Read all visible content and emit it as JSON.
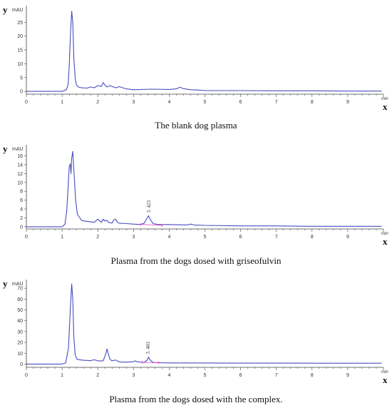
{
  "chart_data": [
    {
      "type": "line",
      "caption": "The blank dog plasma",
      "xlabel": "x",
      "ylabel": "y",
      "y_unit": "mAU",
      "x_unit": "min",
      "xlim": [
        0,
        10
      ],
      "ylim": [
        -1,
        31
      ],
      "x_ticks": [
        0,
        1,
        2,
        3,
        4,
        5,
        6,
        7,
        8,
        9
      ],
      "y_ticks": [
        0,
        5,
        10,
        15,
        20,
        25
      ],
      "grid": false,
      "line_color": "#4b4bbf",
      "series": [
        {
          "x": [
            0,
            1.0,
            1.12,
            1.17,
            1.2,
            1.24,
            1.27,
            1.3,
            1.33,
            1.37,
            1.4,
            1.45,
            1.55,
            1.7,
            1.8,
            1.9,
            2.0,
            2.1,
            2.15,
            2.2,
            2.25,
            2.35,
            2.5,
            2.6,
            2.8,
            3.0,
            3.5,
            4.0,
            4.2,
            4.3,
            4.4,
            4.6,
            4.8,
            5.0,
            6.0,
            7.0,
            8.0,
            9.0,
            9.95
          ],
          "y": [
            0,
            0,
            0.6,
            2.5,
            9,
            22,
            29,
            25,
            12,
            4.5,
            2.5,
            1.6,
            1.3,
            1.2,
            1.6,
            1.3,
            2.1,
            1.8,
            3.2,
            2.3,
            1.6,
            2.1,
            1.3,
            1.7,
            0.9,
            0.6,
            0.8,
            0.7,
            0.9,
            1.5,
            1.0,
            0.6,
            0.5,
            0.3,
            0.3,
            0.2,
            0.2,
            0.1,
            0.1
          ]
        }
      ],
      "peak_labels": []
    },
    {
      "type": "line",
      "caption": "Plasma from the dogs dosed with griseofulvin",
      "xlabel": "x",
      "ylabel": "y",
      "y_unit": "mAU",
      "x_unit": "min",
      "xlim": [
        0,
        10
      ],
      "ylim": [
        -0.5,
        18.5
      ],
      "x_ticks": [
        0,
        1,
        2,
        3,
        4,
        5,
        6,
        7,
        8,
        9
      ],
      "y_ticks": [
        0,
        2,
        4,
        6,
        8,
        10,
        12,
        14,
        16
      ],
      "grid": false,
      "line_color": "#4b4bbf",
      "baseline_color": "#e040c0",
      "series": [
        {
          "x": [
            0,
            1.0,
            1.08,
            1.13,
            1.17,
            1.2,
            1.23,
            1.25,
            1.27,
            1.3,
            1.33,
            1.38,
            1.43,
            1.48,
            1.55,
            1.7,
            1.8,
            1.9,
            2.0,
            2.1,
            2.15,
            2.2,
            2.25,
            2.3,
            2.4,
            2.45,
            2.5,
            2.55,
            2.6,
            2.8,
            3.0,
            3.2,
            3.3,
            3.35,
            3.42,
            3.48,
            3.55,
            3.7,
            4.0,
            4.5,
            4.6,
            4.7,
            5.0,
            6.0,
            7.0,
            8.0,
            9.0,
            9.95
          ],
          "y": [
            0,
            0,
            0.6,
            3.5,
            9,
            13.5,
            14.2,
            12,
            15.5,
            17,
            13,
            6,
            2.8,
            2.2,
            1.4,
            1.2,
            1.1,
            1.0,
            1.7,
            1.0,
            1.7,
            1.3,
            1.5,
            1.0,
            0.8,
            1.6,
            1.7,
            1.0,
            0.8,
            0.7,
            0.6,
            0.5,
            0.8,
            1.5,
            2.5,
            1.5,
            0.7,
            0.5,
            0.5,
            0.4,
            0.6,
            0.4,
            0.3,
            0.2,
            0.2,
            0.1,
            0.1,
            0.1
          ]
        }
      ],
      "peak_labels": [
        {
          "x": 3.423,
          "text": "3. 423"
        }
      ],
      "integration_baseline": {
        "x": [
          3.2,
          3.8
        ],
        "y": [
          0.55,
          0.3
        ]
      }
    },
    {
      "type": "line",
      "caption": "Plasma from the dogs dosed with the complex.",
      "xlabel": "x",
      "ylabel": "y",
      "y_unit": "mAU",
      "x_unit": "min",
      "xlim": [
        0,
        10
      ],
      "ylim": [
        -3,
        78
      ],
      "x_ticks": [
        0,
        1,
        2,
        3,
        4,
        5,
        6,
        7,
        8,
        9
      ],
      "y_ticks": [
        0,
        10,
        20,
        30,
        40,
        50,
        60,
        70
      ],
      "grid": false,
      "line_color": "#4b4bbf",
      "baseline_color": "#e040c0",
      "series": [
        {
          "x": [
            0,
            1.0,
            1.1,
            1.18,
            1.23,
            1.27,
            1.3,
            1.33,
            1.37,
            1.42,
            1.5,
            1.6,
            1.8,
            1.9,
            2.0,
            2.15,
            2.22,
            2.26,
            2.3,
            2.34,
            2.4,
            2.5,
            2.6,
            2.8,
            3.0,
            3.05,
            3.1,
            3.2,
            3.3,
            3.38,
            3.42,
            3.46,
            3.55,
            3.7,
            4.0,
            5.0,
            6.0,
            7.0,
            8.0,
            9.0,
            9.95
          ],
          "y": [
            0,
            0,
            1.0,
            15,
            50,
            74,
            60,
            25,
            8,
            4.5,
            4.0,
            3.5,
            3.2,
            4.0,
            3.0,
            3.0,
            9,
            14,
            9,
            4.5,
            3.0,
            3.8,
            2.0,
            1.8,
            2.2,
            3.0,
            2.2,
            1.8,
            1.6,
            3.5,
            6.5,
            4.0,
            1.5,
            1.3,
            1.1,
            1.0,
            0.9,
            0.9,
            0.8,
            0.8,
            0.8
          ]
        }
      ],
      "peak_labels": [
        {
          "x": 3.403,
          "text": "3. 403"
        }
      ],
      "integration_baseline": {
        "x": [
          3.25,
          3.7
        ],
        "y": [
          1.6,
          1.3
        ]
      }
    }
  ]
}
